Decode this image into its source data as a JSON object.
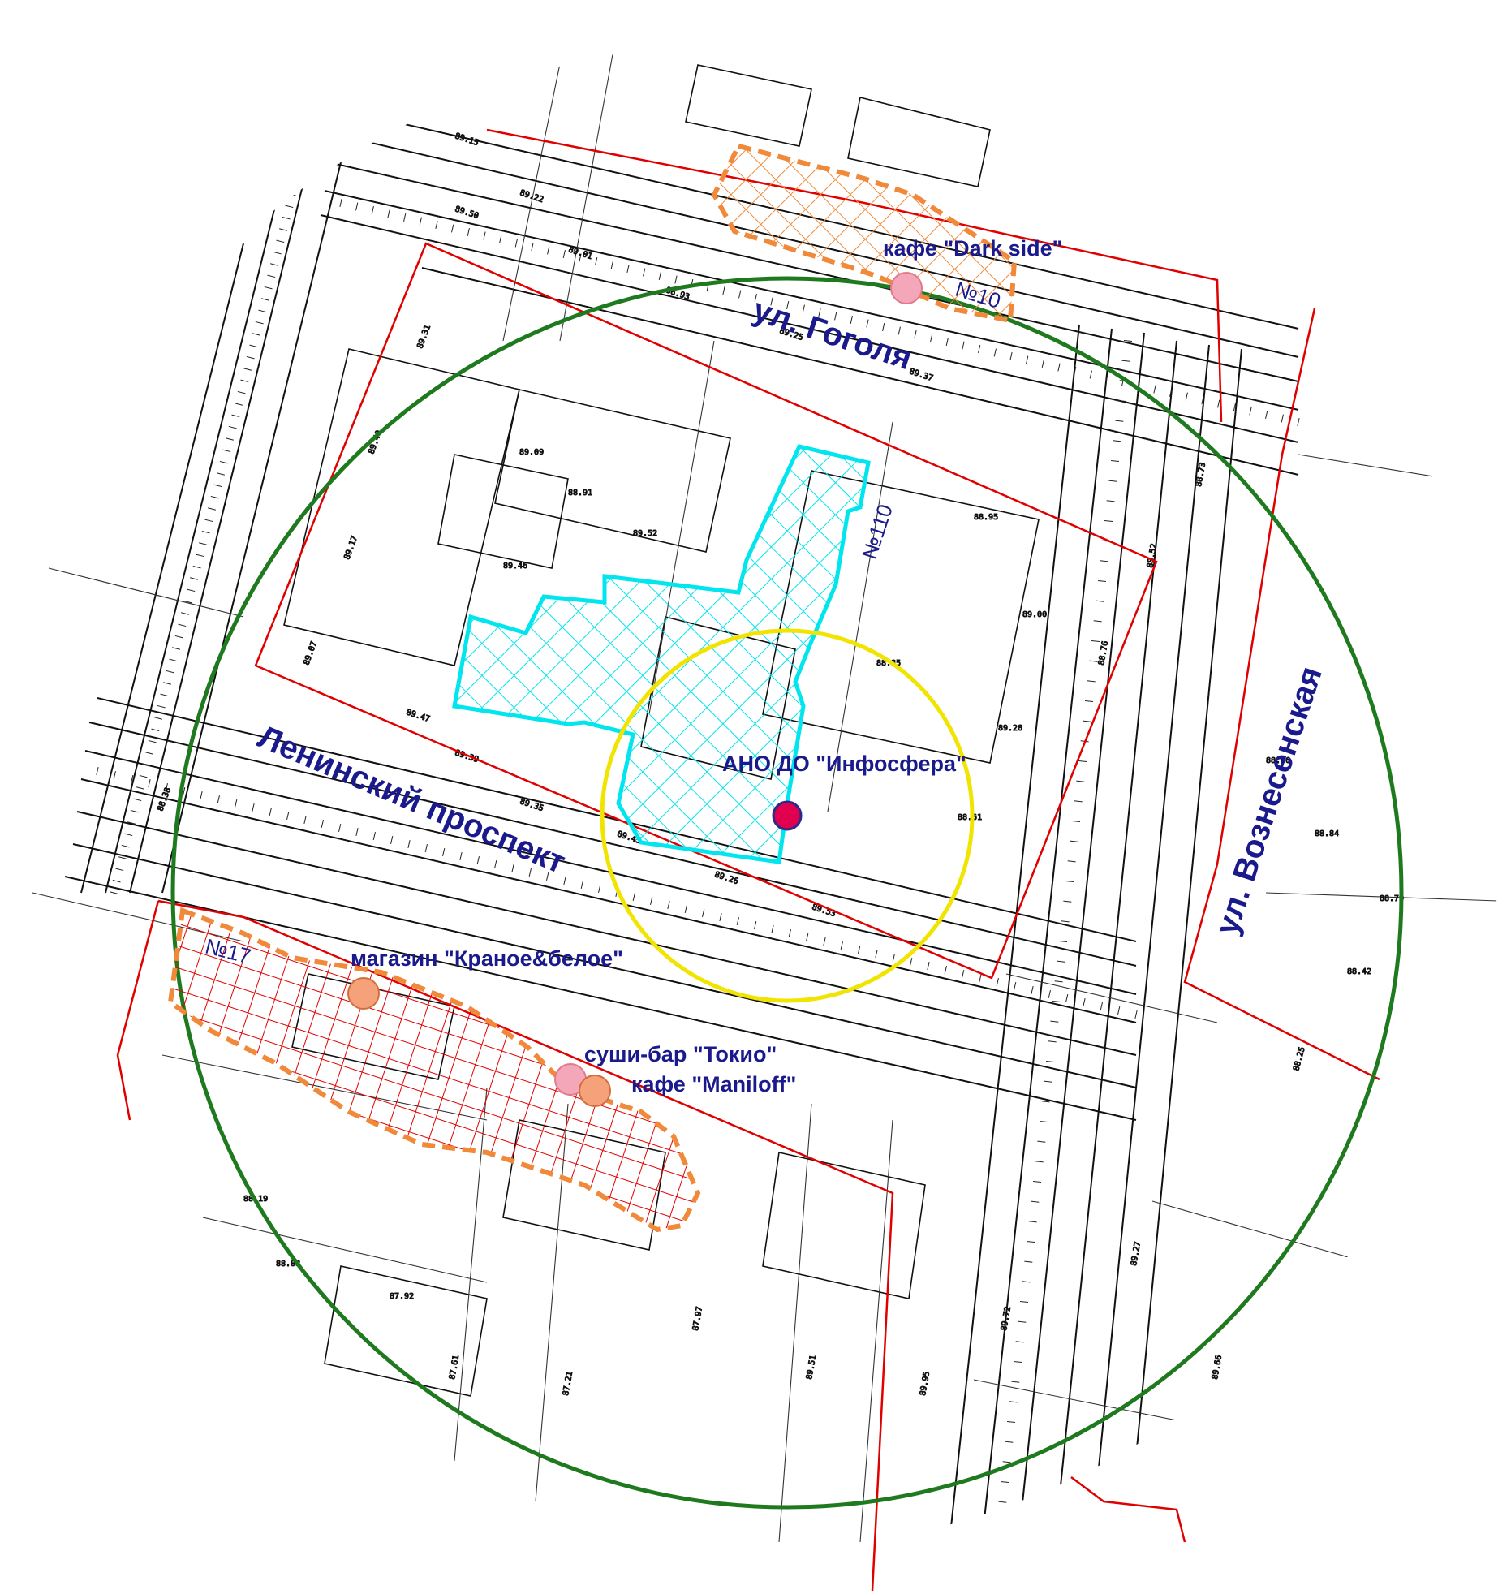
{
  "streets": {
    "gogol": "ул. Гоголя",
    "leninsky": "Ленинский проспект",
    "voznesenskaya": "ул. Вознесенская"
  },
  "school": {
    "label": "АНО ДО \"Инфосфера\"",
    "zone_number": "№110",
    "colors": {
      "marker": "#e0004f",
      "hatch": "#00e5ee",
      "radius_small": "#f0e400",
      "radius_large": "#1f7a1f"
    }
  },
  "pois": {
    "dark_side": {
      "label": "кафе \"Dark side\"",
      "zone_number": "№10"
    },
    "krasnoe": {
      "label": "магазин \"Краное&белое\"",
      "zone_number": "№17"
    },
    "tokio": {
      "label": "суши-бар \"Токио\""
    },
    "maniloff": {
      "label": "кафе \"Maniloff\""
    }
  },
  "colors": {
    "lot_boundary": "#e00000",
    "zone_outline": "#f08a3a",
    "poi_marker_pink": "#f4a7b9",
    "poi_marker_salmon": "#f5a27a"
  },
  "survey_labels": [
    "89.15",
    "89.22",
    "89.01",
    "88.93",
    "89.25",
    "89.37",
    "89.50",
    "89.31",
    "89.40",
    "89.17",
    "89.07",
    "89.09",
    "88.91",
    "89.52",
    "89.46",
    "89.47",
    "89.39",
    "89.35",
    "89.45",
    "89.26",
    "89.53",
    "88.95",
    "89.00",
    "89.28",
    "88.85",
    "88.61",
    "88.76",
    "88.52",
    "88.73",
    "88.86",
    "88.84",
    "88.79",
    "88.42",
    "88.25",
    "88.19",
    "88.08",
    "87.92",
    "87.61",
    "87.21",
    "87.97",
    "89.51",
    "89.95",
    "89.72",
    "89.27",
    "89.66",
    "88.38"
  ]
}
